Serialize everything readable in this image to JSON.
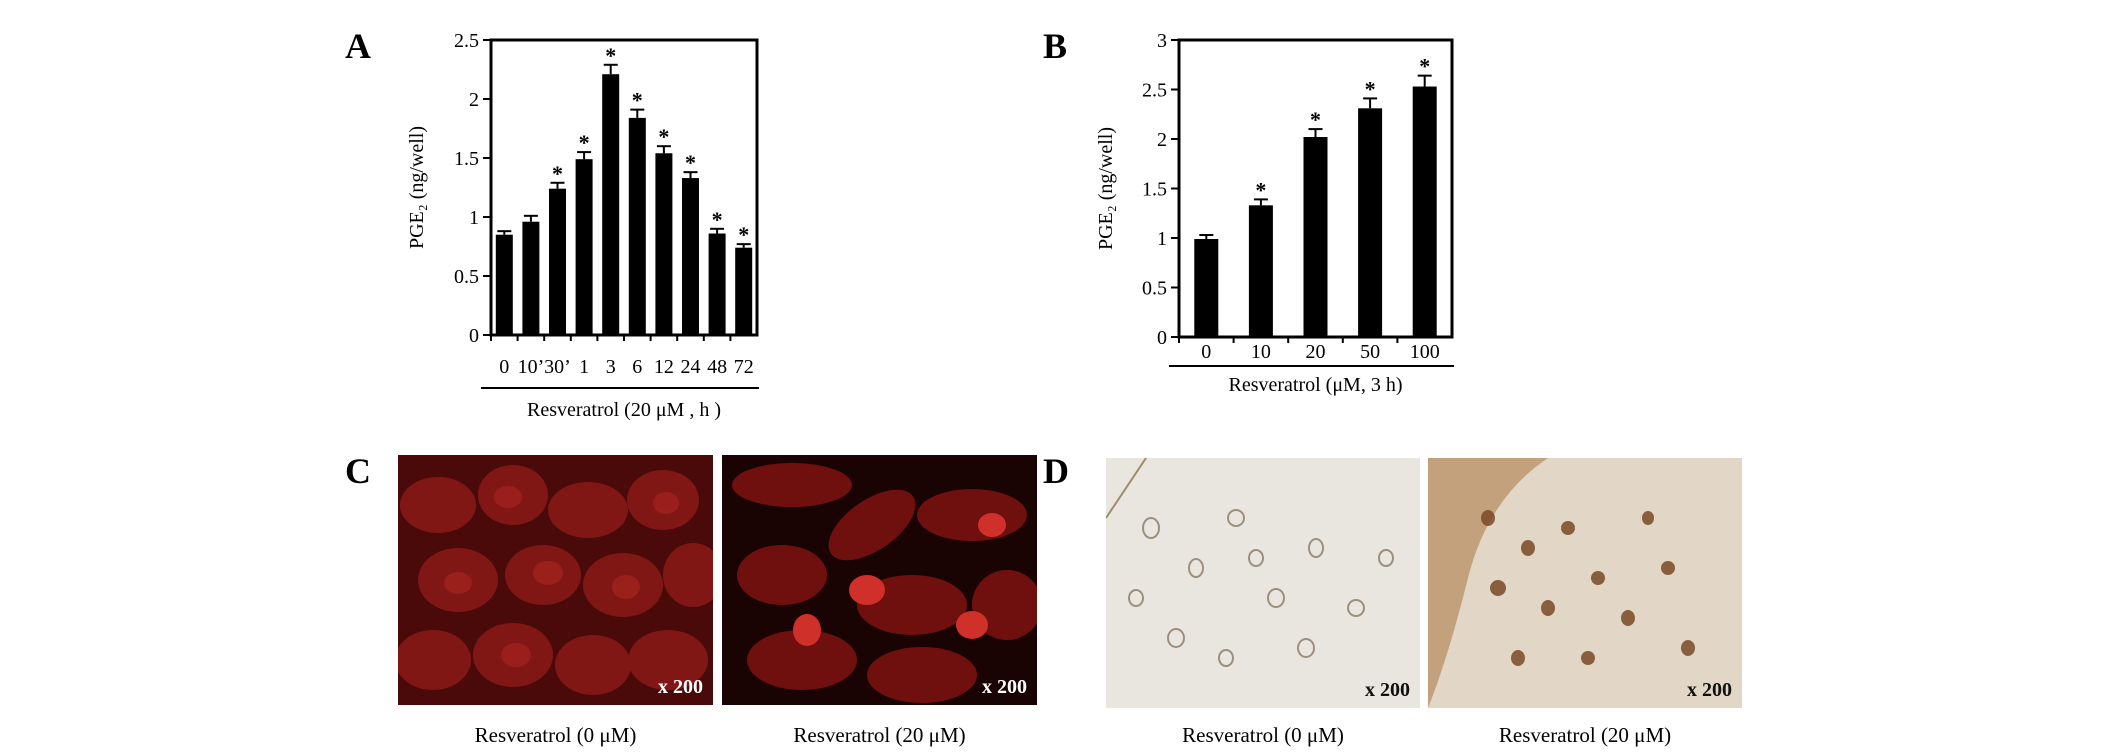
{
  "panels": {
    "a": {
      "letter": "A"
    },
    "b": {
      "letter": "B"
    },
    "c": {
      "letter": "C",
      "images": [
        {
          "caption": "Resveratrol (0 μM)",
          "magnification": "x 200"
        },
        {
          "caption": "Resveratrol (20 μM)",
          "magnification": "x 200"
        }
      ]
    },
    "d": {
      "letter": "D",
      "images": [
        {
          "caption": "Resveratrol (0 μM)",
          "magnification": "x 200"
        },
        {
          "caption": "Resveratrol (20 μM)",
          "magnification": "x 200"
        }
      ]
    }
  },
  "chart_data": [
    {
      "type": "bar",
      "title": "",
      "xlabel": "Resveratrol (20 μM , h )",
      "ylabel": "PGE₂ (ng/well)",
      "ylim": [
        0,
        2.5
      ],
      "yticks": [
        "0",
        "0.5",
        "1",
        "1.5",
        "2",
        "2.5"
      ],
      "categories": [
        "0",
        "10’",
        "30’",
        "1",
        "3",
        "6",
        "12",
        "24",
        "48",
        "72"
      ],
      "values": [
        0.85,
        0.96,
        1.24,
        1.49,
        2.21,
        1.84,
        1.54,
        1.33,
        0.86,
        0.74
      ],
      "errors": [
        0.03,
        0.05,
        0.05,
        0.06,
        0.08,
        0.07,
        0.06,
        0.05,
        0.04,
        0.03
      ],
      "significance": [
        "",
        "",
        "*",
        "*",
        "*",
        "*",
        "*",
        "*",
        "*",
        "*"
      ],
      "bar_color": "#000000",
      "grid": false
    },
    {
      "type": "bar",
      "title": "",
      "xlabel": "Resveratrol (μM, 3 h)",
      "ylabel": "PGE₂ (ng/well)",
      "ylim": [
        0,
        3
      ],
      "yticks": [
        "0",
        "0.5",
        "1",
        "1.5",
        "2",
        "2.5",
        "3"
      ],
      "categories": [
        "0",
        "10",
        "20",
        "50",
        "100"
      ],
      "values": [
        0.99,
        1.33,
        2.02,
        2.31,
        2.53
      ],
      "errors": [
        0.04,
        0.06,
        0.08,
        0.1,
        0.11
      ],
      "significance": [
        "",
        "*",
        "*",
        "*",
        "*"
      ],
      "bar_color": "#000000",
      "grid": false
    }
  ]
}
